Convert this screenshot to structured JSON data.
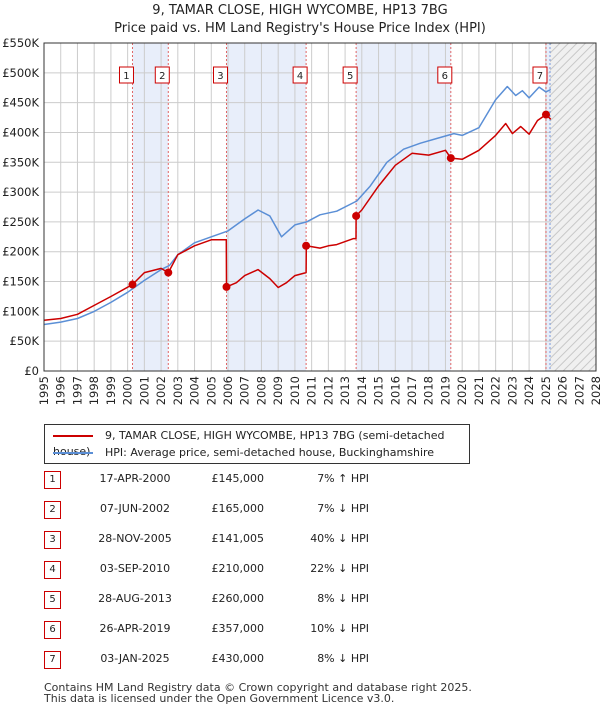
{
  "title_line1": "9, TAMAR CLOSE, HIGH WYCOMBE, HP13 7BG",
  "title_line2": "Price paid vs. HM Land Registry's House Price Index (HPI)",
  "colors": {
    "property": "#cc0000",
    "hpi": "#5b8fd6",
    "band": "#e8eefa",
    "grid": "#cccccc"
  },
  "chart_data": {
    "type": "line",
    "xlim": [
      1995,
      2028
    ],
    "ylim": [
      0,
      550000
    ],
    "y_ticks": [
      0,
      50000,
      100000,
      150000,
      200000,
      250000,
      300000,
      350000,
      400000,
      450000,
      500000,
      550000
    ],
    "y_tick_labels": [
      "£0",
      "£50K",
      "£100K",
      "£150K",
      "£200K",
      "£250K",
      "£300K",
      "£350K",
      "£400K",
      "£450K",
      "£500K",
      "£550K"
    ],
    "x_ticks": [
      1995,
      1996,
      1997,
      1998,
      1999,
      2000,
      2001,
      2002,
      2003,
      2004,
      2005,
      2006,
      2007,
      2008,
      2009,
      2010,
      2011,
      2012,
      2013,
      2014,
      2015,
      2016,
      2017,
      2018,
      2019,
      2020,
      2021,
      2022,
      2023,
      2024,
      2025,
      2026,
      2027,
      2028
    ],
    "future_from": 2025.25,
    "series": [
      {
        "name": "9, TAMAR CLOSE, HIGH WYCOMBE, HP13 7BG (semi-detached house)",
        "x": [
          1995.0,
          1996.0,
          1997.0,
          1998.0,
          1999.0,
          2000.29,
          2001.0,
          2002.0,
          2002.43,
          2003.0,
          2004.0,
          2005.0,
          2005.9,
          2005.91,
          2006.5,
          2007.0,
          2007.8,
          2008.5,
          2009.0,
          2009.5,
          2010.0,
          2010.67,
          2010.68,
          2011.5,
          2012.0,
          2012.5,
          2013.5,
          2013.65,
          2013.66,
          2014.0,
          2015.0,
          2016.0,
          2017.0,
          2018.0,
          2019.0,
          2019.32,
          2019.33,
          2020.0,
          2021.0,
          2022.0,
          2022.6,
          2023.0,
          2023.5,
          2024.0,
          2024.5,
          2025.01,
          2025.3
        ],
        "y": [
          85000,
          88000,
          95000,
          110000,
          125000,
          145000,
          165000,
          172000,
          165000,
          195000,
          210000,
          220000,
          220000,
          141005,
          148000,
          160000,
          170000,
          155000,
          140000,
          148000,
          160000,
          165000,
          210000,
          206000,
          210000,
          212000,
          222000,
          222000,
          260000,
          270000,
          310000,
          345000,
          365000,
          362000,
          370000,
          357000,
          357000,
          355000,
          370000,
          395000,
          415000,
          398000,
          410000,
          397000,
          420000,
          430000,
          422000
        ]
      },
      {
        "name": "HPI: Average price, semi-detached house, Buckinghamshire",
        "x": [
          1995.0,
          1996.0,
          1997.0,
          1998.0,
          1999.0,
          2000.0,
          2001.0,
          2002.0,
          2002.5,
          2003.0,
          2004.0,
          2005.0,
          2006.0,
          2007.0,
          2007.8,
          2008.5,
          2009.2,
          2010.0,
          2010.7,
          2011.5,
          2012.5,
          2013.7,
          2014.5,
          2015.5,
          2016.5,
          2017.5,
          2018.5,
          2019.5,
          2020.0,
          2021.0,
          2022.0,
          2022.7,
          2023.2,
          2023.6,
          2024.0,
          2024.6,
          2025.0,
          2025.3
        ],
        "y": [
          78000,
          82000,
          88000,
          100000,
          115000,
          132000,
          152000,
          170000,
          177000,
          195000,
          215000,
          225000,
          235000,
          255000,
          270000,
          260000,
          225000,
          245000,
          250000,
          262000,
          268000,
          285000,
          310000,
          350000,
          372000,
          382000,
          390000,
          398000,
          395000,
          408000,
          455000,
          477000,
          462000,
          470000,
          458000,
          476000,
          468000,
          472000
        ]
      }
    ],
    "sales": [
      {
        "label": "1",
        "x": 2000.29,
        "y": 145000
      },
      {
        "label": "2",
        "x": 2002.43,
        "y": 165000
      },
      {
        "label": "3",
        "x": 2005.91,
        "y": 141005
      },
      {
        "label": "4",
        "x": 2010.67,
        "y": 210000
      },
      {
        "label": "5",
        "x": 2013.66,
        "y": 260000
      },
      {
        "label": "6",
        "x": 2019.32,
        "y": 357000
      },
      {
        "label": "7",
        "x": 2025.01,
        "y": 430000
      }
    ]
  },
  "legend": {
    "property_label": "9, TAMAR CLOSE, HIGH WYCOMBE, HP13 7BG (semi-detached house)",
    "hpi_label": "HPI: Average price, semi-detached house, Buckinghamshire"
  },
  "sales_table": [
    {
      "num": "1",
      "date": "17-APR-2000",
      "price": "£145,000",
      "hpi": "7% ↑ HPI"
    },
    {
      "num": "2",
      "date": "07-JUN-2002",
      "price": "£165,000",
      "hpi": "7% ↓ HPI"
    },
    {
      "num": "3",
      "date": "28-NOV-2005",
      "price": "£141,005",
      "hpi": "40% ↓ HPI"
    },
    {
      "num": "4",
      "date": "03-SEP-2010",
      "price": "£210,000",
      "hpi": "22% ↓ HPI"
    },
    {
      "num": "5",
      "date": "28-AUG-2013",
      "price": "£260,000",
      "hpi": "8% ↓ HPI"
    },
    {
      "num": "6",
      "date": "26-APR-2019",
      "price": "£357,000",
      "hpi": "10% ↓ HPI"
    },
    {
      "num": "7",
      "date": "03-JAN-2025",
      "price": "£430,000",
      "hpi": "8% ↓ HPI"
    }
  ],
  "footer_line1": "Contains HM Land Registry data © Crown copyright and database right 2025.",
  "footer_line2": "This data is licensed under the Open Government Licence v3.0."
}
